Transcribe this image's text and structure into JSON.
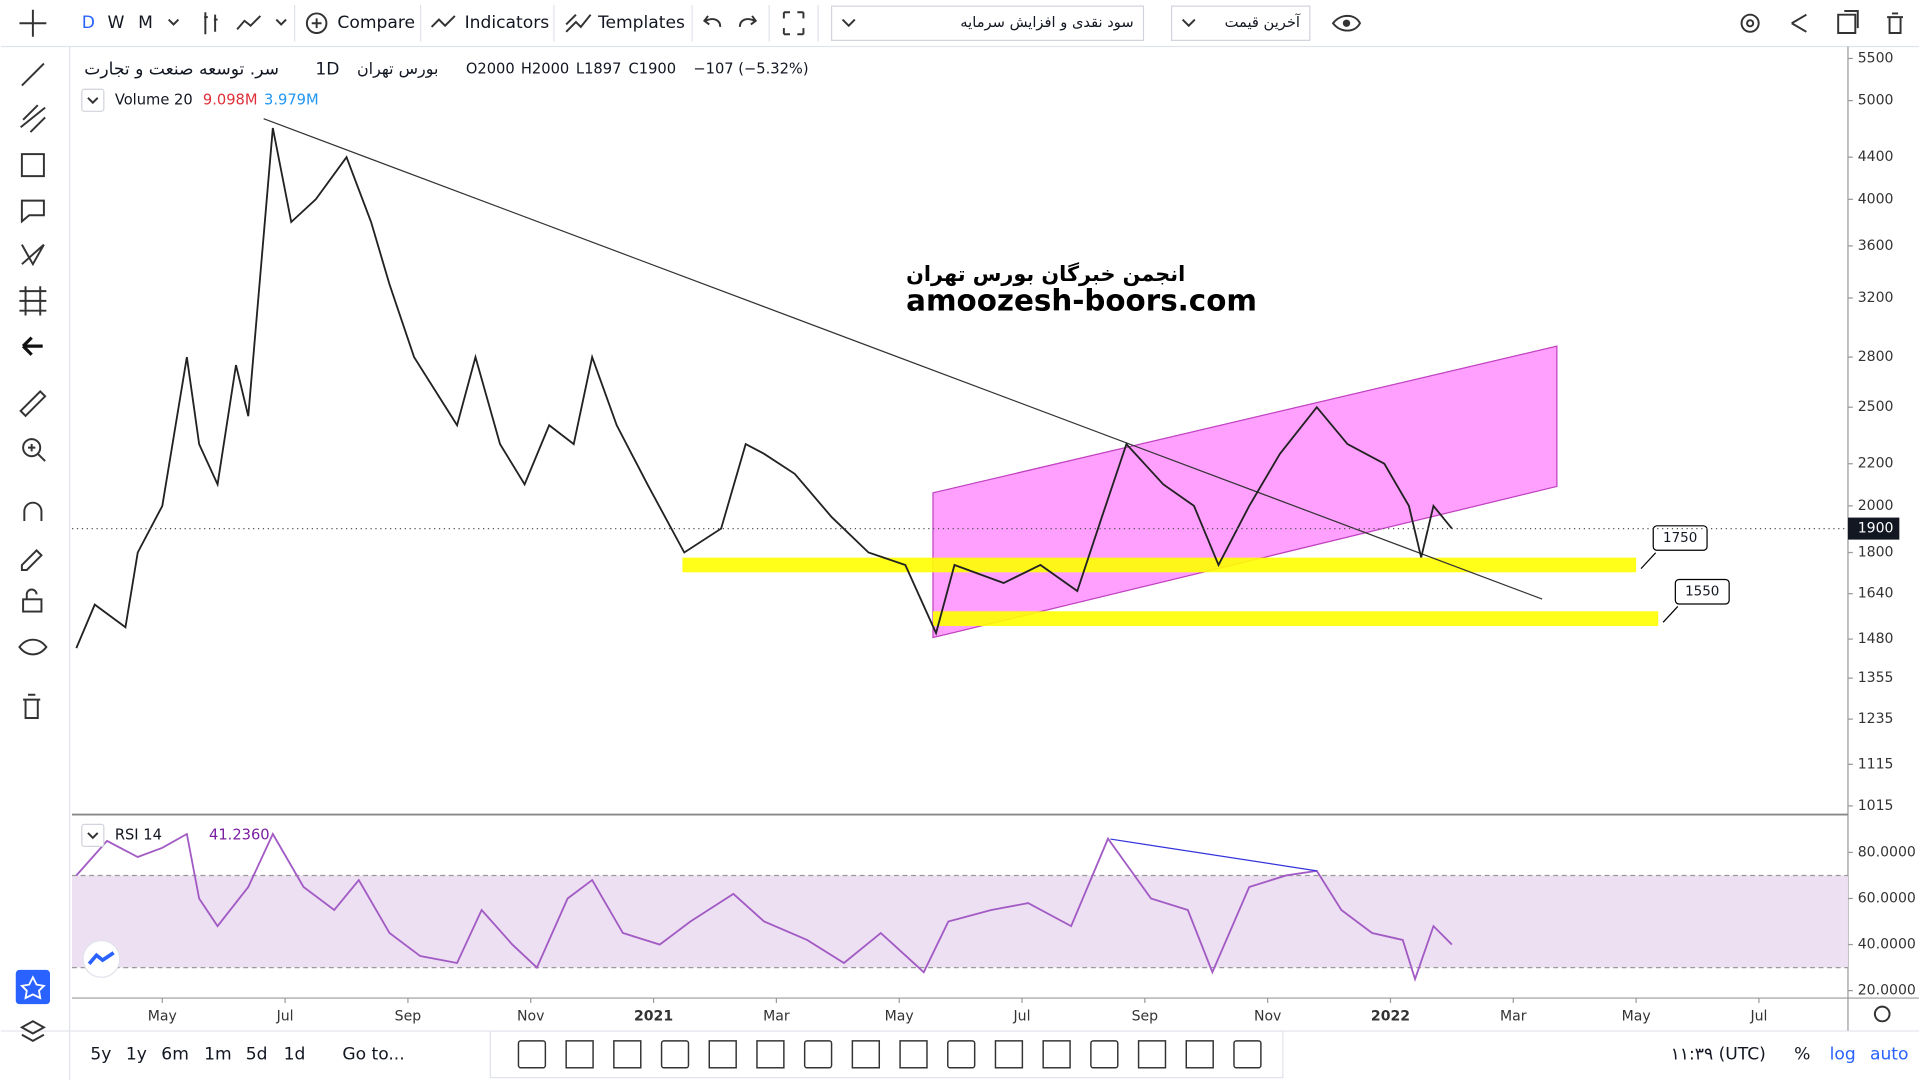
{
  "toolbar": {
    "intervals": [
      "D",
      "W",
      "M"
    ],
    "compare": "Compare",
    "indicators": "Indicators",
    "templates": "Templates",
    "adjustment": "سود نقدی و افزایش سرمایه",
    "price_source": "آخرین قیمت"
  },
  "bottom_bar": {
    "ranges": [
      "5y",
      "1y",
      "6m",
      "1m",
      "5d",
      "1d"
    ],
    "goto": "Go to...",
    "clock": "۱۱:۳۹ (UTC)",
    "percent": "%",
    "log": "log",
    "auto": "auto"
  },
  "watermark": {
    "line1": "انجمن خبرگان بورس تهران",
    "line2": "amoozesh-boors.com"
  },
  "chart_data": [
    {
      "type": "line",
      "symbol": "سر. توسعه صنعت و تجارت",
      "interval": "1D",
      "exchange": "بورس تهران",
      "open": "O2000",
      "high": "H2000",
      "low": "L1897",
      "close": "C1900",
      "change": "−107 (−5.32%)",
      "volume_legend": {
        "name": "Volume 20",
        "value": "9.098M",
        "ma": "3.979M"
      },
      "last_price": 1900,
      "log_scale": true,
      "xlim": [
        -1.47,
        27.45
      ],
      "xticks": [
        {
          "value": 0,
          "label": "May"
        },
        {
          "value": 2,
          "label": "Jul"
        },
        {
          "value": 4,
          "label": "Sep"
        },
        {
          "value": 6,
          "label": "Nov"
        },
        {
          "value": 8,
          "label": "2021"
        },
        {
          "value": 10,
          "label": "Mar"
        },
        {
          "value": 12,
          "label": "May"
        },
        {
          "value": 14,
          "label": "Jul"
        },
        {
          "value": 16,
          "label": "Sep"
        },
        {
          "value": 18,
          "label": "Nov"
        },
        {
          "value": 20,
          "label": "2022"
        },
        {
          "value": 22,
          "label": "Mar"
        },
        {
          "value": 24,
          "label": "May"
        },
        {
          "value": 26,
          "label": "Jul"
        }
      ],
      "ylim": [
        998,
        5620
      ],
      "yticks": [
        5500,
        5000,
        4400,
        4000,
        3600,
        3200,
        2800,
        2500,
        2200,
        2000,
        1800,
        1640,
        1480,
        1355,
        1235,
        1115,
        1015
      ],
      "series": [
        {
          "color": "#222222",
          "x": [
            -1.4,
            -1.1,
            -0.6,
            -0.4,
            0,
            0.4,
            0.6,
            0.9,
            1.2,
            1.4,
            1.8,
            2.1,
            2.5,
            3.0,
            3.4,
            3.7,
            4.1,
            4.8,
            5.1,
            5.5,
            5.9,
            6.3,
            6.7,
            7.0,
            7.4,
            7.9,
            8.5,
            9.1,
            9.5,
            9.8,
            10.3,
            10.9,
            11.5,
            12.1,
            12.6,
            12.9,
            13.7,
            14.3,
            14.9,
            15.3,
            15.7,
            16.3,
            16.8,
            17.2,
            17.7,
            18.2,
            18.8,
            19.3,
            19.9,
            20.3,
            20.5,
            20.7,
            21.0
          ],
          "values": [
            1450,
            1600,
            1520,
            1800,
            2000,
            2800,
            2300,
            2100,
            2750,
            2450,
            4700,
            3800,
            4000,
            4400,
            3800,
            3300,
            2800,
            2400,
            2800,
            2300,
            2100,
            2400,
            2300,
            2800,
            2400,
            2100,
            1800,
            1900,
            2300,
            2250,
            2150,
            1950,
            1800,
            1750,
            1500,
            1750,
            1680,
            1750,
            1650,
            1950,
            2300,
            2100,
            2000,
            1750,
            2000,
            2250,
            2500,
            2300,
            2200,
            2000,
            1780,
            2000,
            1900
          ]
        }
      ],
      "drawings": {
        "trendline": {
          "color": "#333333",
          "x": [
            1.65,
            22.47
          ],
          "values": [
            4800,
            1620
          ]
        },
        "channel": {
          "color": "#ff80ff",
          "x": [
            12.55,
            22.71
          ],
          "lower": [
            1485,
            2090
          ],
          "upper": [
            2060,
            2870
          ]
        },
        "zones": [
          {
            "value": 1750,
            "x": [
              8.47,
              24.0
            ],
            "color": "#ffff00"
          },
          {
            "value": 1550,
            "x": [
              12.55,
              24.36
            ],
            "color": "#ffff00"
          }
        ]
      }
    },
    {
      "type": "line",
      "name": "RSI 14",
      "value": "41.2360",
      "xlim": [
        -1.47,
        27.45
      ],
      "ylim": [
        17.3,
        95.9
      ],
      "yticks": [
        {
          "value": 80,
          "label": "80.0000"
        },
        {
          "value": 60,
          "label": "60.0000"
        },
        {
          "value": 40,
          "label": "40.0000"
        },
        {
          "value": 20,
          "label": "20.0000"
        }
      ],
      "band": [
        30,
        70
      ],
      "series": [
        {
          "color": "#a25bc4",
          "x": [
            -1.4,
            -0.9,
            -0.4,
            0,
            0.4,
            0.6,
            0.9,
            1.4,
            1.8,
            2.3,
            2.8,
            3.2,
            3.7,
            4.2,
            4.8,
            5.2,
            5.7,
            6.1,
            6.6,
            7.0,
            7.5,
            8.1,
            8.6,
            9.3,
            9.8,
            10.5,
            11.1,
            11.7,
            12.4,
            12.8,
            13.5,
            14.1,
            14.8,
            15.4,
            16.1,
            16.7,
            17.1,
            17.7,
            18.3,
            18.8,
            19.2,
            19.7,
            20.2,
            20.4,
            20.7,
            21.0
          ],
          "values": [
            70,
            85,
            78,
            82,
            88,
            60,
            48,
            65,
            88,
            65,
            55,
            68,
            45,
            35,
            32,
            55,
            40,
            30,
            60,
            68,
            45,
            40,
            50,
            62,
            50,
            42,
            32,
            45,
            28,
            50,
            55,
            58,
            48,
            86,
            60,
            55,
            28,
            65,
            70,
            72,
            55,
            45,
            42,
            25,
            48,
            40
          ]
        }
      ],
      "divergence": {
        "color": "#3333dd",
        "x": [
          15.44,
          18.8
        ],
        "values": [
          85.8,
          72
        ]
      }
    }
  ]
}
